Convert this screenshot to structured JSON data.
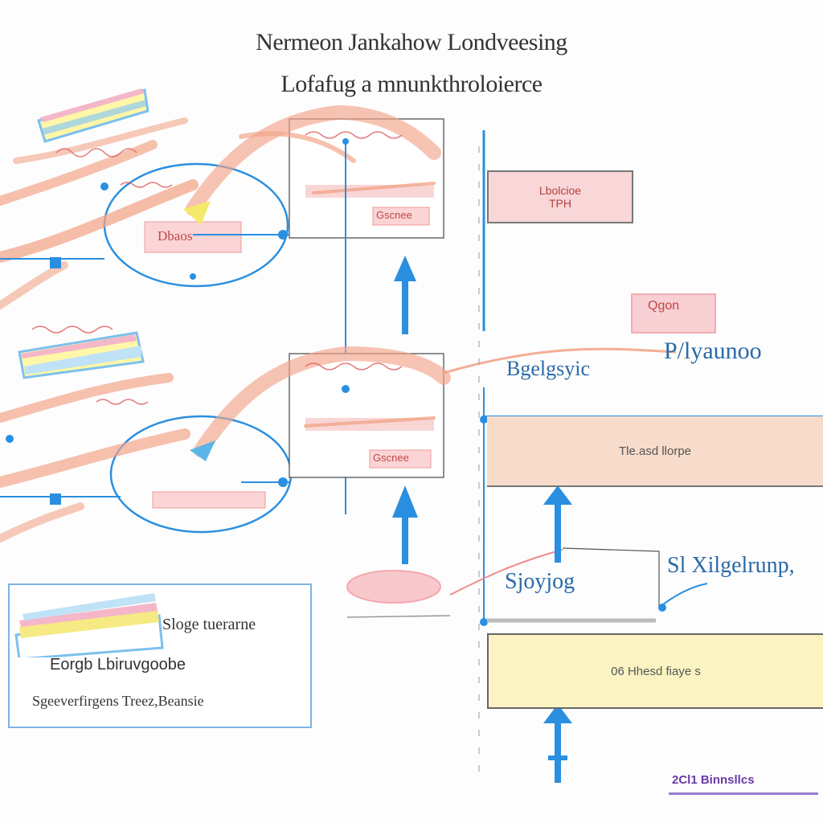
{
  "title": {
    "line1": "Nermeon Jankahow Londveesing",
    "line2": "Lofafug a mnunkthroloierce"
  },
  "top_section": {
    "diagram_label": "Gscnee",
    "inner_label": "Dbaos"
  },
  "middle_section": {
    "diagram_label": "Gscnee"
  },
  "right_panel": {
    "box_top_line1": "Lbolcioe",
    "box_top_line2": "TPH",
    "label_mid_small": "Qgon",
    "label_mid_left": "Bgelgsyic",
    "label_mid_right": "P/lyaunoo",
    "box_peach_label": "Tle.asd llorpe",
    "label_lower_left": "Sjoyjog",
    "label_lower_right": "Sl Xilgelrunp,",
    "box_yellow_label": "06 Hhesd fiaye s",
    "footer_label": "2Cl1 Binnsllcs"
  },
  "legend": {
    "line1": "Sloge tuerarne",
    "line2": "Eorgb Lbiruvgoobe",
    "line3": "Sgeeverfirgens Treez,Beansie"
  },
  "colors": {
    "blue": "#2a8fe0",
    "salmon": "#f2a58a",
    "pink_box": "#f9d6d8",
    "peach_box": "#f7dccb",
    "yellow_box": "#fbf4c2"
  }
}
